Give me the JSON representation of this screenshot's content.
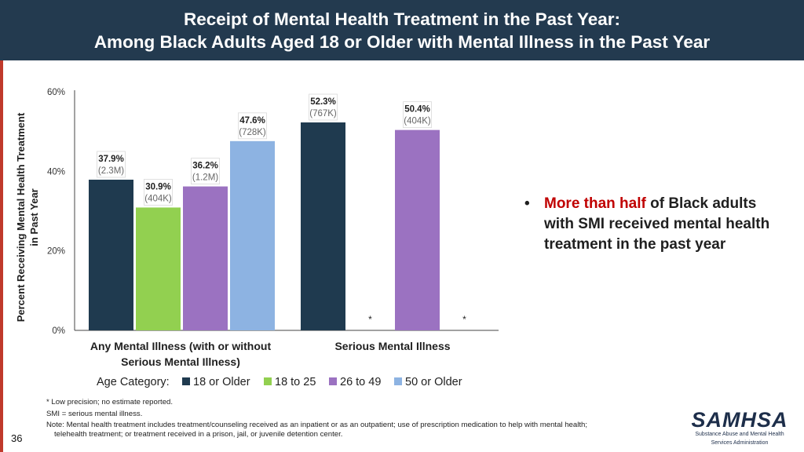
{
  "slide": {
    "title_line1": "Receipt of Mental Health Treatment in the Past Year:",
    "title_line2": "Among Black Adults Aged 18 or Older with Mental Illness in the Past Year",
    "page_number": "36"
  },
  "bullet": {
    "highlight": "More than half",
    "text": " of Black adults with SMI received mental health treatment in the past year"
  },
  "footnotes": {
    "line1": "* Low precision; no estimate reported.",
    "line2": "SMI = serious mental illness.",
    "line3": "Note: Mental health treatment includes treatment/counseling received as an inpatient or as an outpatient; use of prescription medication to help with mental health;",
    "line4": "telehealth treatment; or treatment received in a prison, jail, or juvenile detention center."
  },
  "logo": {
    "word": "SAMHSA",
    "sub_line1": "Substance Abuse and Mental Health",
    "sub_line2": "Services Administration"
  },
  "colors": {
    "header_bg": "#233a4f",
    "series": [
      "#1f3a4f",
      "#92d050",
      "#9b72c1",
      "#8db3e2"
    ]
  },
  "chart_data": {
    "type": "bar",
    "ylabel_line1": "Percent Receiving Mental Health Treatment",
    "ylabel_line2": "in Past Year",
    "ylim": [
      0,
      60
    ],
    "yticks": [
      0,
      20,
      40,
      60
    ],
    "ytick_labels": [
      "0%",
      "20%",
      "40%",
      "60%"
    ],
    "categories": [
      {
        "line1": "Any Mental Illness (with or without",
        "line2": "Serious Mental Illness)"
      },
      {
        "line1": "Serious Mental Illness",
        "line2": ""
      }
    ],
    "legend_title": "Age Category:",
    "series": [
      {
        "name": "18 or Older",
        "color": "#1f3a4f",
        "values": [
          37.9,
          52.3
        ],
        "labels": [
          "37.9%",
          "52.3%"
        ],
        "counts": [
          "(2.3M)",
          "(767K)"
        ],
        "suppressed": [
          false,
          false
        ]
      },
      {
        "name": "18 to 25",
        "color": "#92d050",
        "values": [
          30.9,
          null
        ],
        "labels": [
          "30.9%",
          "*"
        ],
        "counts": [
          "(404K)",
          ""
        ],
        "suppressed": [
          false,
          true
        ]
      },
      {
        "name": "26 to 49",
        "color": "#9b72c1",
        "values": [
          36.2,
          50.4
        ],
        "labels": [
          "36.2%",
          "50.4%"
        ],
        "counts": [
          "(1.2M)",
          "(404K)"
        ],
        "suppressed": [
          false,
          false
        ]
      },
      {
        "name": "50 or Older",
        "color": "#8db3e2",
        "values": [
          47.6,
          null
        ],
        "labels": [
          "47.6%",
          "*"
        ],
        "counts": [
          "(728K)",
          ""
        ],
        "suppressed": [
          false,
          true
        ]
      }
    ]
  }
}
